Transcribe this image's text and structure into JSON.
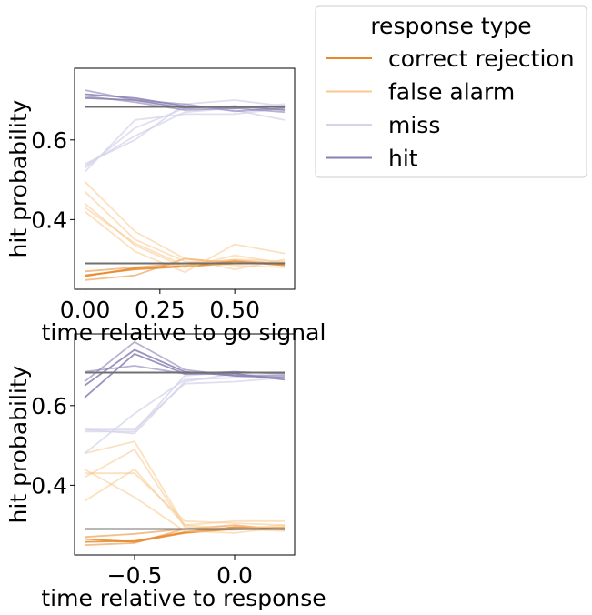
{
  "chart_data": [
    {
      "type": "line",
      "xlabel": "time relative to go signal",
      "ylabel": "hit probability",
      "xlim": [
        -0.035,
        0.7
      ],
      "ylim": [
        0.225,
        0.78
      ],
      "xticks": [
        0.0,
        0.25,
        0.5
      ],
      "xtick_labels": [
        "0.00",
        "0.25",
        "0.50"
      ],
      "yticks": [
        0.4,
        0.6
      ],
      "ytick_labels": [
        "0.4",
        "0.6"
      ],
      "x": [
        0.0,
        0.167,
        0.333,
        0.5,
        0.667
      ],
      "reference_lines": [
        {
          "y": 0.683,
          "color": "#707070"
        },
        {
          "y": 0.29,
          "color": "#707070"
        }
      ],
      "series": [
        {
          "group": "correct rejection",
          "color": "#e8882b",
          "opacity": 0.85,
          "values": [
            0.26,
            0.275,
            0.282,
            0.29,
            0.29
          ]
        },
        {
          "group": "correct rejection",
          "color": "#e8882b",
          "opacity": 0.85,
          "values": [
            0.258,
            0.278,
            0.284,
            0.295,
            0.285
          ]
        },
        {
          "group": "correct rejection",
          "color": "#e8882b",
          "opacity": 0.55,
          "values": [
            0.27,
            0.28,
            0.29,
            0.298,
            0.288
          ]
        },
        {
          "group": "correct rejection",
          "color": "#e8882b",
          "opacity": 0.55,
          "values": [
            0.248,
            0.26,
            0.302,
            0.29,
            0.292
          ]
        },
        {
          "group": "false alarm",
          "color": "#f8c98c",
          "opacity": 0.55,
          "values": [
            0.495,
            0.37,
            0.302,
            0.275,
            0.3
          ]
        },
        {
          "group": "false alarm",
          "color": "#f8c98c",
          "opacity": 0.55,
          "values": [
            0.44,
            0.335,
            0.28,
            0.31,
            0.29
          ]
        },
        {
          "group": "false alarm",
          "color": "#f8c98c",
          "opacity": 0.55,
          "values": [
            0.42,
            0.32,
            0.268,
            0.338,
            0.315
          ]
        },
        {
          "group": "false alarm",
          "color": "#f8c98c",
          "opacity": 0.55,
          "values": [
            0.47,
            0.35,
            0.295,
            0.285,
            0.28
          ]
        },
        {
          "group": "false alarm",
          "color": "#f8c98c",
          "opacity": 0.55,
          "values": [
            0.43,
            0.34,
            0.285,
            0.3,
            0.295
          ]
        },
        {
          "group": "miss",
          "color": "#d4d4ea",
          "opacity": 0.75,
          "values": [
            0.53,
            0.63,
            0.68,
            0.675,
            0.65
          ]
        },
        {
          "group": "miss",
          "color": "#d4d4ea",
          "opacity": 0.75,
          "values": [
            0.54,
            0.6,
            0.69,
            0.7,
            0.685
          ]
        },
        {
          "group": "miss",
          "color": "#d4d4ea",
          "opacity": 0.75,
          "values": [
            0.52,
            0.65,
            0.665,
            0.665,
            0.68
          ]
        },
        {
          "group": "miss",
          "color": "#d4d4ea",
          "opacity": 0.75,
          "values": [
            0.535,
            0.61,
            0.67,
            0.68,
            0.69
          ]
        },
        {
          "group": "hit",
          "color": "#8a7fb3",
          "opacity": 0.85,
          "values": [
            0.715,
            0.705,
            0.685,
            0.68,
            0.685
          ]
        },
        {
          "group": "hit",
          "color": "#8a7fb3",
          "opacity": 0.85,
          "values": [
            0.705,
            0.7,
            0.68,
            0.685,
            0.675
          ]
        },
        {
          "group": "hit",
          "color": "#8a7fb3",
          "opacity": 0.6,
          "values": [
            0.725,
            0.7,
            0.69,
            0.672,
            0.68
          ]
        },
        {
          "group": "hit",
          "color": "#8a7fb3",
          "opacity": 0.6,
          "values": [
            0.71,
            0.695,
            0.675,
            0.68,
            0.67
          ]
        }
      ]
    },
    {
      "type": "line",
      "xlabel": "time relative to response",
      "ylabel": "hit probability",
      "xlim": [
        -0.8,
        0.3
      ],
      "ylim": [
        0.225,
        0.78
      ],
      "xticks": [
        -0.5,
        0.0
      ],
      "xtick_labels": [
        "−0.5",
        "0.0"
      ],
      "yticks": [
        0.4,
        0.6
      ],
      "ytick_labels": [
        "0.4",
        "0.6"
      ],
      "x": [
        -0.75,
        -0.5,
        -0.25,
        0.0,
        0.25
      ],
      "reference_lines": [
        {
          "y": 0.683,
          "color": "#707070"
        },
        {
          "y": 0.29,
          "color": "#707070"
        }
      ],
      "series": [
        {
          "group": "correct rejection",
          "color": "#e8882b",
          "opacity": 0.85,
          "values": [
            0.265,
            0.258,
            0.28,
            0.29,
            0.293
          ]
        },
        {
          "group": "correct rejection",
          "color": "#e8882b",
          "opacity": 0.85,
          "values": [
            0.258,
            0.26,
            0.282,
            0.295,
            0.29
          ]
        },
        {
          "group": "correct rejection",
          "color": "#e8882b",
          "opacity": 0.55,
          "values": [
            0.27,
            0.278,
            0.29,
            0.288,
            0.295
          ]
        },
        {
          "group": "correct rejection",
          "color": "#e8882b",
          "opacity": 0.55,
          "values": [
            0.25,
            0.255,
            0.29,
            0.3,
            0.288
          ]
        },
        {
          "group": "false alarm",
          "color": "#f8c98c",
          "opacity": 0.55,
          "values": [
            0.48,
            0.51,
            0.3,
            0.29,
            0.3
          ]
        },
        {
          "group": "false alarm",
          "color": "#f8c98c",
          "opacity": 0.55,
          "values": [
            0.43,
            0.43,
            0.31,
            0.305,
            0.3
          ]
        },
        {
          "group": "false alarm",
          "color": "#f8c98c",
          "opacity": 0.55,
          "values": [
            0.44,
            0.37,
            0.285,
            0.28,
            0.295
          ]
        },
        {
          "group": "false alarm",
          "color": "#f8c98c",
          "opacity": 0.55,
          "values": [
            0.36,
            0.44,
            0.3,
            0.31,
            0.31
          ]
        },
        {
          "group": "false alarm",
          "color": "#f8c98c",
          "opacity": 0.55,
          "values": [
            0.42,
            0.49,
            0.295,
            0.29,
            0.285
          ]
        },
        {
          "group": "miss",
          "color": "#d4d4ea",
          "opacity": 0.75,
          "values": [
            0.54,
            0.54,
            0.655,
            0.66,
            0.67
          ]
        },
        {
          "group": "miss",
          "color": "#d4d4ea",
          "opacity": 0.75,
          "values": [
            0.535,
            0.535,
            0.675,
            0.685,
            0.68
          ]
        },
        {
          "group": "miss",
          "color": "#d4d4ea",
          "opacity": 0.75,
          "values": [
            0.48,
            0.58,
            0.665,
            0.67,
            0.68
          ]
        },
        {
          "group": "miss",
          "color": "#d4d4ea",
          "opacity": 0.75,
          "values": [
            0.54,
            0.53,
            0.66,
            0.68,
            0.675
          ]
        },
        {
          "group": "hit",
          "color": "#8a7fb3",
          "opacity": 0.85,
          "values": [
            0.65,
            0.74,
            0.685,
            0.675,
            0.67
          ]
        },
        {
          "group": "hit",
          "color": "#8a7fb3",
          "opacity": 0.85,
          "values": [
            0.62,
            0.73,
            0.68,
            0.68,
            0.665
          ]
        },
        {
          "group": "hit",
          "color": "#8a7fb3",
          "opacity": 0.6,
          "values": [
            0.66,
            0.76,
            0.69,
            0.675,
            0.675
          ]
        },
        {
          "group": "hit",
          "color": "#8a7fb3",
          "opacity": 0.6,
          "values": [
            0.685,
            0.7,
            0.68,
            0.685,
            0.68
          ]
        }
      ]
    }
  ],
  "legend": {
    "title": "response type",
    "placement": "outside upper right",
    "items": [
      {
        "label": "correct rejection",
        "color": "#e8882b"
      },
      {
        "label": "false alarm",
        "color": "#f8c98c"
      },
      {
        "label": "miss",
        "color": "#d4d4ea"
      },
      {
        "label": "hit",
        "color": "#8a7fb3"
      }
    ]
  }
}
